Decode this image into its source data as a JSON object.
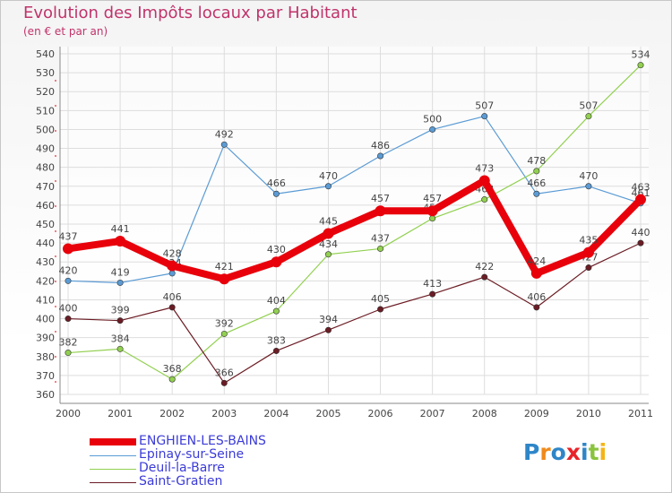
{
  "header": {
    "title": "Evolution des Impôts locaux par Habitant",
    "subtitle": "(en € et par an)"
  },
  "logo": {
    "text": "Proxiti",
    "letters": [
      {
        "ch": "P",
        "color": "#2e86c8"
      },
      {
        "ch": "r",
        "color": "#f08a1c"
      },
      {
        "ch": "o",
        "color": "#2e86c8"
      },
      {
        "ch": "x",
        "color": "#e8232a"
      },
      {
        "ch": "i",
        "color": "#2e86c8"
      },
      {
        "ch": "t",
        "color": "#8ac33d"
      },
      {
        "ch": "i",
        "color": "#f5b417"
      }
    ]
  },
  "chart_data": {
    "type": "line",
    "title": "Evolution des Impôts locaux par Habitant",
    "subtitle": "(en € et par an)",
    "x": [
      "2000",
      "2001",
      "2002",
      "2003",
      "2004",
      "2005",
      "2006",
      "2007",
      "2008",
      "2009",
      "2010",
      "2011"
    ],
    "ylim": [
      360,
      540
    ],
    "yticks": [
      360,
      370,
      380,
      390,
      400,
      410,
      420,
      430,
      440,
      450,
      460,
      470,
      480,
      490,
      500,
      510,
      520,
      530,
      540
    ],
    "grid": true,
    "legend_position": "bottom-left",
    "series": [
      {
        "name": "Epinay-sur-Seine",
        "color": "#5b9bd5",
        "values": [
          420,
          419,
          424,
          492,
          466,
          470,
          486,
          500,
          507,
          466,
          470,
          461
        ],
        "labels": [
          "420",
          "419",
          "424",
          "492",
          "466",
          "470",
          "486",
          "500",
          "507",
          "466",
          "470",
          "461"
        ],
        "label_pos": [
          "above",
          "above",
          "above",
          "above",
          "above",
          "above",
          "above",
          "above",
          "above",
          "above",
          "above",
          "above"
        ]
      },
      {
        "name": "Deuil-la-Barre",
        "color": "#92d050",
        "values": [
          382,
          384,
          368,
          392,
          404,
          434,
          437,
          453,
          463,
          478,
          507,
          534
        ],
        "labels": [
          "382",
          "384",
          "368",
          "392",
          "404",
          "434",
          "437",
          "453",
          "463",
          "478",
          "507",
          "534"
        ],
        "label_pos": [
          "above",
          "above",
          "above",
          "above",
          "above",
          "above",
          "above",
          "above",
          "above",
          "above",
          "above",
          "above"
        ]
      },
      {
        "name": "Saint-Gratien",
        "color": "#6b1c24",
        "values": [
          400,
          399,
          406,
          366,
          383,
          394,
          405,
          413,
          422,
          406,
          427,
          440
        ],
        "labels": [
          "400",
          "399",
          "406",
          "366",
          "383",
          "394",
          "405",
          "413",
          "422",
          "406",
          "427",
          "440"
        ],
        "label_pos": [
          "above",
          "above",
          "above",
          "above",
          "above",
          "above",
          "above",
          "above",
          "above",
          "above",
          "above",
          "above"
        ]
      },
      {
        "name": "ENGHIEN-LES-BAINS",
        "color": "#e8000b",
        "values": [
          437,
          441,
          428,
          421,
          430,
          445,
          457,
          457,
          473,
          424,
          435,
          463
        ],
        "labels": [
          "437",
          "441",
          "428",
          "421",
          "430",
          "445",
          "457",
          "457",
          "473",
          "424",
          "435",
          "463"
        ],
        "label_pos": [
          "above",
          "above",
          "above",
          "above",
          "above",
          "above",
          "above",
          "above",
          "above",
          "above",
          "above",
          "above"
        ]
      }
    ],
    "legend": [
      {
        "name": "ENGHIEN-LES-BAINS",
        "color": "#e8000b",
        "width": 8
      },
      {
        "name": "Epinay-sur-Seine",
        "color": "#5b9bd5",
        "width": 1
      },
      {
        "name": "Deuil-la-Barre",
        "color": "#92d050",
        "width": 1
      },
      {
        "name": "Saint-Gratien",
        "color": "#6b1c24",
        "width": 1
      }
    ],
    "legend_text_color": "#3b3bd8"
  }
}
